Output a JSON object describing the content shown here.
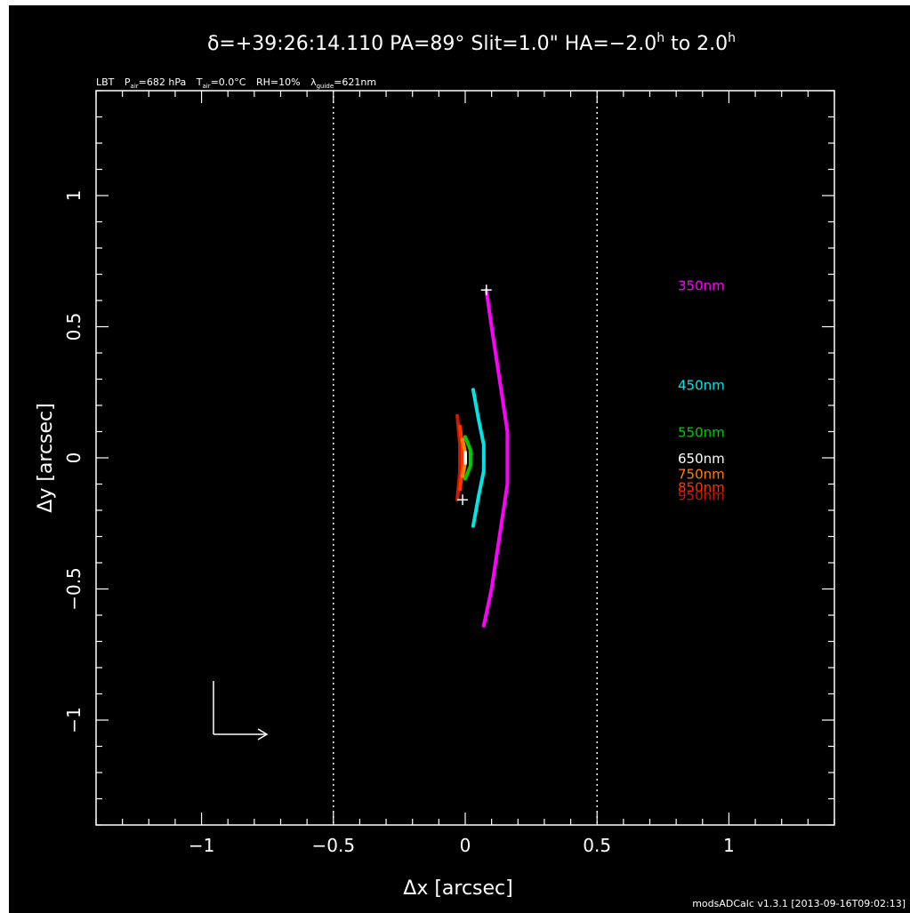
{
  "chart_data": {
    "type": "line",
    "title": "δ=+39:26:14.110 PA=89° Slit=1.0\" HA=−2.0h to 2.0h",
    "title_parts": {
      "main": "δ=+39:26:14.110 PA=89° Slit=1.0\" HA=−2.0",
      "sup1": "h",
      "to": " to 2.0",
      "sup2": "h"
    },
    "subtitle_parts": {
      "lbt": "LBT",
      "p": "P",
      "p_sub": "air",
      "p_val": "=682 hPa",
      "t": "T",
      "t_sub": "air",
      "t_val": "=0.0°C",
      "rh": "RH=10%",
      "lam": "λ",
      "lam_sub": "guide",
      "lam_val": "=621nm"
    },
    "xlabel": "Δx [arcsec]",
    "ylabel": "Δy [arcsec]",
    "xlim": [
      -1.4,
      1.4
    ],
    "ylim": [
      -1.4,
      1.4
    ],
    "xticks": [
      -1,
      -0.5,
      0,
      0.5,
      1
    ],
    "xtick_labels": [
      "−1",
      "−0.5",
      "0",
      "0.5",
      "1"
    ],
    "yticks": [
      -1,
      -0.5,
      0,
      0.5,
      1
    ],
    "ytick_labels": [
      "−1",
      "−0.5",
      "0",
      "0.5",
      "1"
    ],
    "vertical_lines": [
      -0.5,
      0.5
    ],
    "footer": "modsADCalc v1.3.1 [2013-09-16T09:02:13]",
    "series": [
      {
        "name": "350nm",
        "color": "#ff00ff",
        "x": [
          0.08,
          0.1,
          0.13,
          0.16,
          0.16,
          0.13,
          0.1,
          0.07
        ],
        "y": [
          0.64,
          0.5,
          0.3,
          0.1,
          -0.1,
          -0.3,
          -0.5,
          -0.64
        ],
        "label_y": 0.66
      },
      {
        "name": "450nm",
        "color": "#00e5e5",
        "x": [
          0.03,
          0.05,
          0.07,
          0.07,
          0.05,
          0.03
        ],
        "y": [
          0.26,
          0.15,
          0.05,
          -0.05,
          -0.15,
          -0.26
        ],
        "label_y": 0.28
      },
      {
        "name": "550nm",
        "color": "#00cc00",
        "x": [
          0.0,
          0.02,
          0.02,
          0.0
        ],
        "y": [
          0.08,
          0.03,
          -0.03,
          -0.08
        ],
        "label_y": 0.1
      },
      {
        "name": "650nm",
        "color": "#ffffff",
        "x": [
          0.0,
          0.0
        ],
        "y": [
          0.02,
          -0.02
        ],
        "label_y": 0.0
      },
      {
        "name": "750nm",
        "color": "#ff7f00",
        "x": [
          -0.01,
          0.0,
          0.0,
          -0.01
        ],
        "y": [
          0.07,
          0.02,
          -0.02,
          -0.07
        ],
        "label_y": -0.06
      },
      {
        "name": "850nm",
        "color": "#ff3300",
        "x": [
          -0.02,
          -0.01,
          -0.01,
          -0.02
        ],
        "y": [
          0.12,
          0.04,
          -0.04,
          -0.12
        ],
        "label_y": -0.11
      },
      {
        "name": "950nm",
        "color": "#cc1a00",
        "x": [
          -0.03,
          -0.02,
          -0.02,
          -0.03
        ],
        "y": [
          0.16,
          0.05,
          -0.05,
          -0.16
        ],
        "label_y": -0.14
      }
    ],
    "markers": [
      {
        "x": 0.08,
        "y": 0.64
      },
      {
        "x": -0.01,
        "y": -0.16
      }
    ],
    "grid": false,
    "legend_placement": "right, inline labels"
  }
}
